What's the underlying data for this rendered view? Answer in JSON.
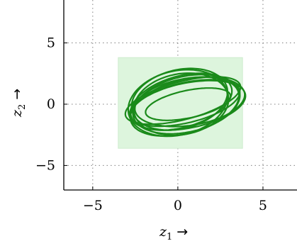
{
  "chart_data": {
    "type": "line",
    "xlabel": {
      "base": "z",
      "sub": "1",
      "arrow": "→"
    },
    "ylabel": {
      "base": "z",
      "sub": "2",
      "arrow": "→"
    },
    "xlim": [
      -6.7,
      7
    ],
    "ylim": [
      -7,
      8.5
    ],
    "xticks": [
      -5,
      0,
      5
    ],
    "yticks": [
      -5,
      0,
      5
    ],
    "xtick_labels": [
      "−5",
      "0",
      "5"
    ],
    "ytick_labels": [
      "−5",
      "0",
      "5"
    ],
    "grid": true,
    "colors": {
      "curve": "#1a8a1a",
      "region_fill": "#ddf5dd",
      "region_border": "#cdeccd"
    },
    "region": {
      "x": [
        -3.5,
        3.8
      ],
      "y": [
        -3.6,
        3.8
      ]
    },
    "series": [
      {
        "type": "ellipses",
        "values": [
          {
            "cx": 0.4,
            "cy": 0.1,
            "rx": 3.4,
            "ry": 1.6,
            "angle_deg": 20
          },
          {
            "cx": 0.2,
            "cy": 0.2,
            "rx": 3.2,
            "ry": 2.0,
            "angle_deg": 28
          },
          {
            "cx": 0.6,
            "cy": -0.1,
            "rx": 3.5,
            "ry": 1.8,
            "angle_deg": 18
          },
          {
            "cx": 0.1,
            "cy": 0.4,
            "rx": 3.0,
            "ry": 2.3,
            "angle_deg": 32
          },
          {
            "cx": 0.5,
            "cy": 0.0,
            "rx": 3.3,
            "ry": 2.2,
            "angle_deg": 24
          },
          {
            "cx": 0.3,
            "cy": 0.3,
            "rx": 3.6,
            "ry": 1.5,
            "angle_deg": 22
          },
          {
            "cx": 0.0,
            "cy": 0.1,
            "rx": 3.1,
            "ry": 2.5,
            "angle_deg": 35
          },
          {
            "cx": 0.7,
            "cy": 0.2,
            "rx": 3.3,
            "ry": 1.9,
            "angle_deg": 15
          },
          {
            "cx": 0.4,
            "cy": -0.2,
            "rx": 3.4,
            "ry": 2.1,
            "angle_deg": 26
          },
          {
            "cx": 0.2,
            "cy": 0.0,
            "rx": 2.9,
            "ry": 2.4,
            "angle_deg": 30
          }
        ]
      },
      {
        "type": "inner-ellipse",
        "values": [
          {
            "cx": 0.6,
            "cy": 0.0,
            "rx": 2.6,
            "ry": 1.1,
            "angle_deg": 18
          }
        ]
      }
    ]
  }
}
